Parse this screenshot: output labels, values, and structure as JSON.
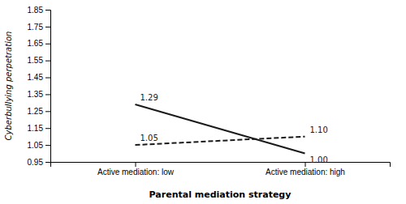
{
  "chart_data": {
    "type": "line",
    "categories": [
      "Active mediation: low",
      "Active mediation: high"
    ],
    "series": [
      {
        "color": "#1a1a1a",
        "line_style": "solid",
        "values": [
          1.29,
          1.0
        ],
        "value_labels": [
          "1.29",
          "1.00"
        ]
      },
      {
        "color": "#1a1a1a",
        "line_style": "dashed",
        "values": [
          1.05,
          1.1
        ],
        "value_labels": [
          "1.05",
          "1.10"
        ]
      }
    ],
    "xlabel": "Parental mediation strategy",
    "ylabel": "Cyberbullying perpetration",
    "ylim": [
      0.95,
      1.85
    ],
    "yticks": [
      0.95,
      1.05,
      1.15,
      1.25,
      1.35,
      1.45,
      1.55,
      1.65,
      1.75,
      1.85
    ],
    "grid": false,
    "data_labels": true
  }
}
